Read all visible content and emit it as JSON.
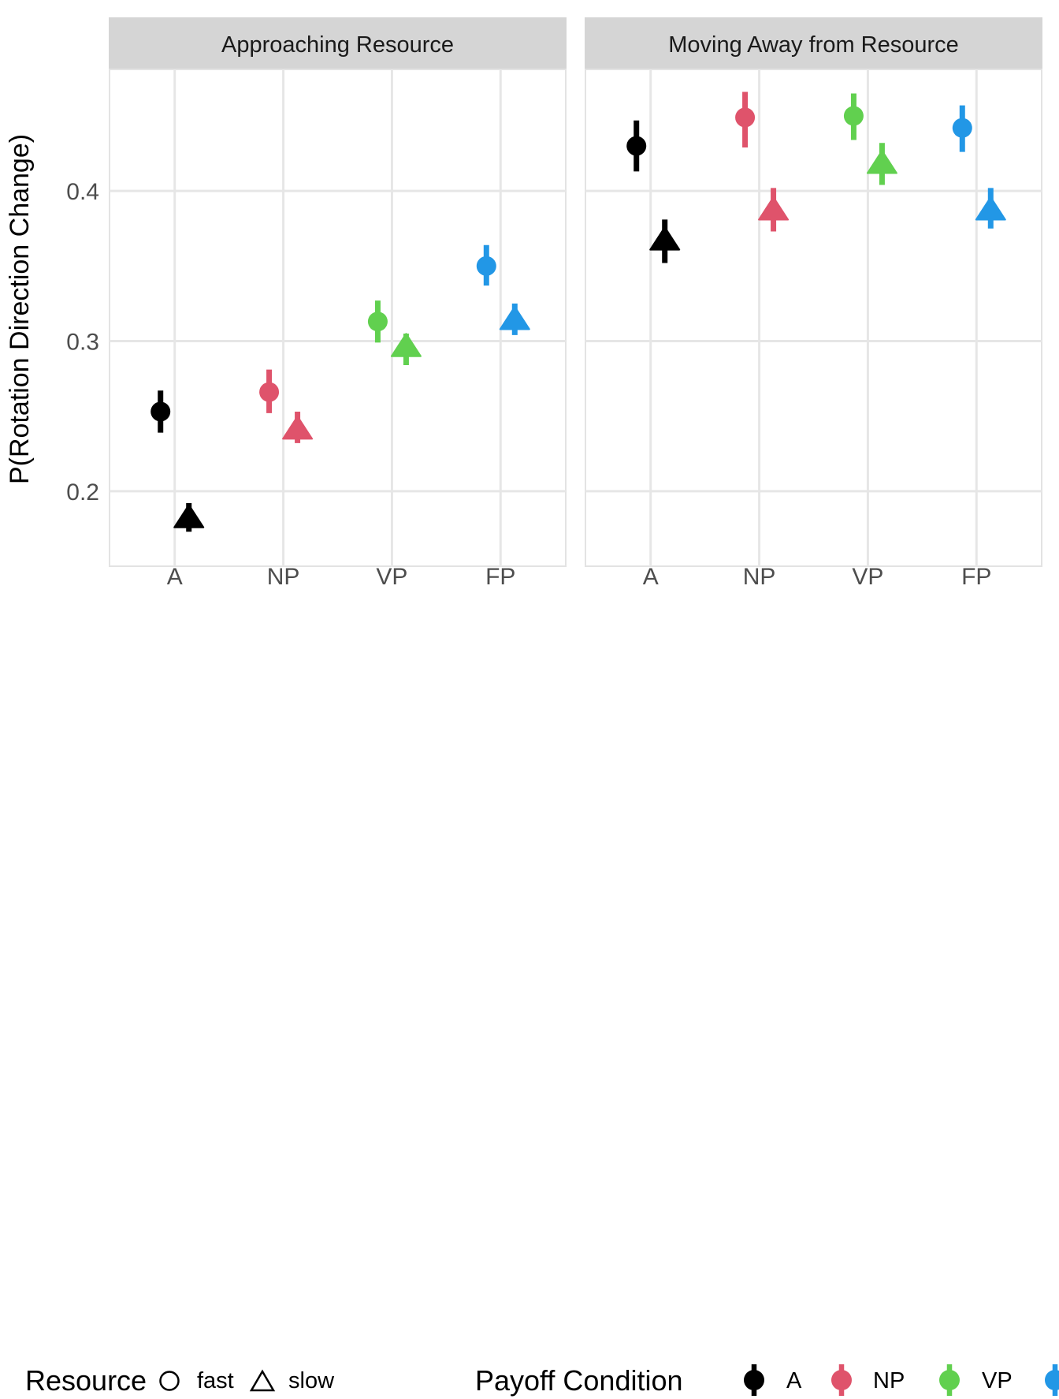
{
  "chart_data": {
    "type": "pointrange",
    "description": "Faceted point-with-error-bar plot, two facets, dodged by resource speed (circle=fast, triangle=slow), colored by payoff condition",
    "categories": [
      "A",
      "NP",
      "VP",
      "FP"
    ],
    "ylabel": "P(Rotation Direction Change)",
    "y_ticks": [
      0.2,
      0.3,
      0.4
    ],
    "y_tick_labels": [
      "0.2",
      "0.3",
      "0.4"
    ],
    "ylim": [
      0.15,
      0.481
    ],
    "grid": "major gridlines only, light gray on white panel",
    "legend_position": "bottom",
    "palette": {
      "A": "#000000",
      "NP": "#DF536B",
      "VP": "#61D04F",
      "FP": "#2297E6"
    },
    "shape_map": {
      "fast": "circle",
      "slow": "triangle"
    },
    "facets": [
      {
        "label": "Approaching Resource",
        "points": [
          {
            "payoff": "A",
            "resource": "fast",
            "y": 0.253,
            "lo": 0.239,
            "hi": 0.267
          },
          {
            "payoff": "A",
            "resource": "slow",
            "y": 0.183,
            "lo": 0.173,
            "hi": 0.192
          },
          {
            "payoff": "NP",
            "resource": "fast",
            "y": 0.266,
            "lo": 0.252,
            "hi": 0.281
          },
          {
            "payoff": "NP",
            "resource": "slow",
            "y": 0.242,
            "lo": 0.232,
            "hi": 0.253
          },
          {
            "payoff": "VP",
            "resource": "fast",
            "y": 0.313,
            "lo": 0.299,
            "hi": 0.327
          },
          {
            "payoff": "VP",
            "resource": "slow",
            "y": 0.297,
            "lo": 0.284,
            "hi": 0.305
          },
          {
            "payoff": "FP",
            "resource": "fast",
            "y": 0.35,
            "lo": 0.337,
            "hi": 0.364
          },
          {
            "payoff": "FP",
            "resource": "slow",
            "y": 0.315,
            "lo": 0.304,
            "hi": 0.325
          }
        ]
      },
      {
        "label": "Moving Away from Resource",
        "points": [
          {
            "payoff": "A",
            "resource": "fast",
            "y": 0.43,
            "lo": 0.413,
            "hi": 0.447
          },
          {
            "payoff": "A",
            "resource": "slow",
            "y": 0.368,
            "lo": 0.352,
            "hi": 0.381
          },
          {
            "payoff": "NP",
            "resource": "fast",
            "y": 0.449,
            "lo": 0.429,
            "hi": 0.466
          },
          {
            "payoff": "NP",
            "resource": "slow",
            "y": 0.388,
            "lo": 0.373,
            "hi": 0.402
          },
          {
            "payoff": "VP",
            "resource": "fast",
            "y": 0.45,
            "lo": 0.434,
            "hi": 0.465
          },
          {
            "payoff": "VP",
            "resource": "slow",
            "y": 0.419,
            "lo": 0.404,
            "hi": 0.432
          },
          {
            "payoff": "FP",
            "resource": "fast",
            "y": 0.442,
            "lo": 0.426,
            "hi": 0.457
          },
          {
            "payoff": "FP",
            "resource": "slow",
            "y": 0.388,
            "lo": 0.375,
            "hi": 0.402
          }
        ]
      }
    ],
    "style": {
      "strip_fill": "#D5D5D5",
      "strip_text_color": "#1A1A1A",
      "grid_color": "#E6E6E6",
      "panel_border_color": "#E3E3E3",
      "tick_label_color": "#4D4D4D",
      "axis_title_color": "#000000"
    }
  },
  "legend": {
    "resource": {
      "title": "Resource",
      "items": [
        {
          "label": "fast",
          "shape": "circle"
        },
        {
          "label": "slow",
          "shape": "triangle"
        }
      ]
    },
    "payoff": {
      "title": "Payoff Condition",
      "items": [
        {
          "label": "A",
          "color": "#000000",
          "clipped": false
        },
        {
          "label": "NP",
          "color": "#DF536B",
          "clipped": false
        },
        {
          "label": "VP",
          "color": "#61D04F",
          "clipped": false
        },
        {
          "label": "",
          "color": "#2297E6",
          "clipped": true
        }
      ]
    }
  }
}
